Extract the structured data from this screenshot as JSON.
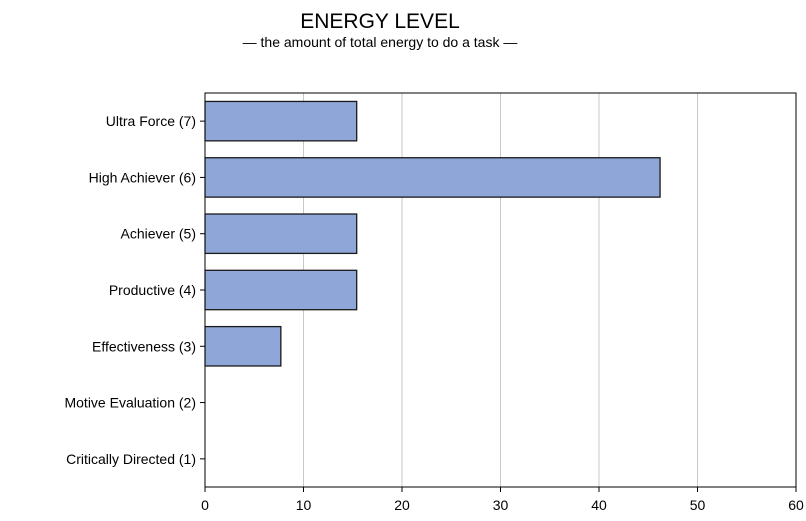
{
  "chart_data": {
    "type": "bar",
    "orientation": "horizontal",
    "title": "ENERGY LEVEL",
    "subtitle": "— the amount of total energy to do a task —",
    "categories": [
      "Ultra Force (7)",
      "High Achiever (6)",
      "Achiever (5)",
      "Productive (4)",
      "Effectiveness (3)",
      "Motive Evaluation (2)",
      "Critically Directed (1)"
    ],
    "values": [
      15.4,
      46.2,
      15.4,
      15.4,
      7.7,
      0,
      0
    ],
    "xlabel": "",
    "ylabel": "",
    "xlim": [
      0,
      60
    ],
    "xticks": [
      0,
      10,
      20,
      30,
      40,
      50,
      60
    ],
    "grid": true,
    "colors": {
      "bar_fill": "#8fa6d8",
      "bar_stroke": "#1a1a1a",
      "grid": "#c8c8c8",
      "axis": "#000000",
      "text": "#000000",
      "background": "#ffffff"
    }
  }
}
